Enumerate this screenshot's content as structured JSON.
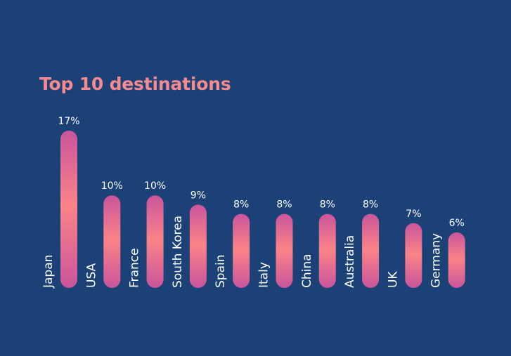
{
  "colors": {
    "background": "#1b4176",
    "title": "#f58a8f",
    "label": "#ffffff",
    "bar_top": "#c9559c",
    "bar_mid": "#fb8388",
    "bar_bottom": "#c9559c"
  },
  "chart_data": {
    "type": "bar",
    "title": "Top 10 destinations",
    "xlabel": "",
    "ylabel": "",
    "ylim": [
      0,
      17
    ],
    "grid": false,
    "unit": "%",
    "categories": [
      "Japan",
      "USA",
      "France",
      "South Korea",
      "Spain",
      "Italy",
      "China",
      "Australia",
      "UK",
      "Germany"
    ],
    "values": [
      17,
      10,
      10,
      9,
      8,
      8,
      8,
      8,
      7,
      6
    ],
    "value_labels": [
      "17%",
      "10%",
      "10%",
      "9%",
      "8%",
      "8%",
      "8%",
      "8%",
      "7%",
      "6%"
    ]
  }
}
